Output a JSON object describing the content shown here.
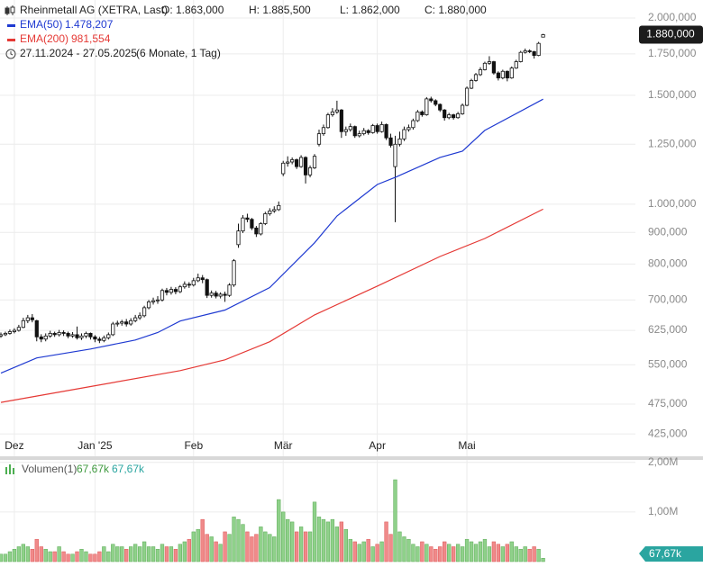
{
  "header": {
    "title": "Rheinmetall AG (XETRA, Last)",
    "ohlc": [
      "O: 1.863,000",
      "H: 1.885,500",
      "L: 1.862,000",
      "C: 1.880,000"
    ],
    "indicators": [
      {
        "name": "EMA(50)",
        "value": "1.478,207"
      },
      {
        "name": "EMA(200)",
        "value": "981,554"
      }
    ],
    "range": "27.11.2024 - 27.05.2025",
    "period": "(6 Monate, 1 Tag)"
  },
  "chart_data": {
    "type": "candlestick",
    "log": true,
    "grid": true,
    "xlim": [
      -0.2,
      141.6
    ],
    "ylim": [
      391,
      2139
    ],
    "xticks": [
      {
        "value": 3,
        "label": "Dez"
      },
      {
        "value": 21,
        "label": "Jan '25"
      },
      {
        "value": 43,
        "label": "Feb"
      },
      {
        "value": 63,
        "label": "Mär"
      },
      {
        "value": 84,
        "label": "Apr"
      },
      {
        "value": 104,
        "label": "Mai"
      }
    ],
    "yticks": [
      {
        "value": 2000,
        "label": "2.000,000"
      },
      {
        "value": 1750,
        "label": "1.750,000"
      },
      {
        "value": 1500,
        "label": "1.500,000"
      },
      {
        "value": 1250,
        "label": "1.250,000"
      },
      {
        "value": 1000,
        "label": "1.000,000"
      },
      {
        "value": 900,
        "label": "900,000"
      },
      {
        "value": 800,
        "label": "800,000"
      },
      {
        "value": 700,
        "label": "700,000"
      },
      {
        "value": 625,
        "label": "625,000"
      },
      {
        "value": 550,
        "label": "550,000"
      },
      {
        "value": 475,
        "label": "475,000"
      },
      {
        "value": 425,
        "label": "425,000"
      }
    ],
    "open": [
      612,
      615,
      618,
      622,
      625,
      632,
      648,
      655,
      648,
      610,
      605,
      612,
      618,
      615,
      620,
      618,
      612,
      615,
      608,
      612,
      618,
      610,
      605,
      602,
      608,
      615,
      640,
      642,
      645,
      640,
      648,
      655,
      660,
      680,
      695,
      698,
      700,
      725,
      720,
      728,
      722,
      735,
      742,
      740,
      752,
      760,
      755,
      712,
      718,
      710,
      715,
      712,
      740,
      860,
      905,
      950,
      945,
      915,
      895,
      930,
      965,
      975,
      980,
      1120,
      1165,
      1170,
      1180,
      1150,
      1190,
      1115,
      1145,
      1250,
      1300,
      1330,
      1395,
      1410,
      1420,
      1310,
      1320,
      1335,
      1290,
      1300,
      1315,
      1305,
      1340,
      1310,
      1345,
      1280,
      1150,
      1250,
      1275,
      1320,
      1330,
      1365,
      1410,
      1395,
      1480,
      1470,
      1450,
      1420,
      1380,
      1395,
      1380,
      1400,
      1445,
      1540,
      1585,
      1620,
      1650,
      1690,
      1700,
      1630,
      1600,
      1640,
      1600,
      1660,
      1700,
      1760,
      1770,
      1765,
      1740,
      1863
    ],
    "high": [
      620,
      622,
      627,
      630,
      638,
      655,
      662,
      664,
      650,
      616,
      618,
      624,
      622,
      626,
      625,
      622,
      621,
      634,
      618,
      622,
      620,
      614,
      610,
      613,
      620,
      645,
      648,
      650,
      652,
      654,
      662,
      668,
      685,
      700,
      706,
      710,
      730,
      732,
      735,
      734,
      740,
      750,
      748,
      760,
      772,
      768,
      758,
      725,
      724,
      720,
      722,
      745,
      815,
      930,
      960,
      965,
      950,
      922,
      935,
      972,
      985,
      992,
      1010,
      1175,
      1195,
      1190,
      1185,
      1200,
      1195,
      1155,
      1205,
      1320,
      1345,
      1405,
      1430,
      1470,
      1425,
      1335,
      1350,
      1340,
      1315,
      1328,
      1322,
      1348,
      1350,
      1360,
      1350,
      1300,
      1290,
      1310,
      1335,
      1345,
      1375,
      1420,
      1418,
      1490,
      1492,
      1478,
      1455,
      1425,
      1405,
      1400,
      1410,
      1455,
      1550,
      1595,
      1630,
      1665,
      1700,
      1735,
      1705,
      1640,
      1650,
      1645,
      1670,
      1712,
      1770,
      1785,
      1780,
      1770,
      1830,
      1885.5
    ],
    "low": [
      608,
      612,
      615,
      618,
      622,
      630,
      642,
      644,
      600,
      598,
      600,
      608,
      610,
      611,
      612,
      607,
      608,
      604,
      603,
      607,
      604,
      598,
      596,
      598,
      604,
      612,
      634,
      636,
      634,
      636,
      644,
      650,
      656,
      676,
      688,
      690,
      696,
      712,
      714,
      715,
      718,
      730,
      732,
      736,
      748,
      745,
      705,
      706,
      704,
      704,
      695,
      708,
      735,
      850,
      898,
      935,
      908,
      885,
      890,
      925,
      958,
      968,
      975,
      1110,
      1150,
      1160,
      1140,
      1145,
      1080,
      1105,
      1140,
      1240,
      1290,
      1325,
      1385,
      1400,
      1280,
      1290,
      1310,
      1280,
      1282,
      1292,
      1295,
      1300,
      1300,
      1305,
      1270,
      1235,
      935,
      1240,
      1265,
      1310,
      1320,
      1358,
      1385,
      1390,
      1460,
      1440,
      1410,
      1365,
      1372,
      1370,
      1375,
      1395,
      1440,
      1535,
      1578,
      1612,
      1645,
      1680,
      1620,
      1585,
      1592,
      1580,
      1595,
      1655,
      1695,
      1752,
      1755,
      1720,
      1735,
      1862
    ],
    "close": [
      615,
      618,
      622,
      625,
      632,
      648,
      655,
      650,
      610,
      605,
      612,
      618,
      615,
      620,
      618,
      612,
      615,
      608,
      612,
      618,
      610,
      605,
      602,
      608,
      615,
      640,
      642,
      645,
      640,
      648,
      655,
      660,
      680,
      695,
      698,
      700,
      725,
      720,
      728,
      722,
      735,
      742,
      740,
      752,
      760,
      755,
      712,
      718,
      710,
      715,
      712,
      740,
      810,
      905,
      950,
      945,
      915,
      895,
      930,
      965,
      975,
      980,
      995,
      1165,
      1170,
      1180,
      1150,
      1190,
      1115,
      1145,
      1195,
      1300,
      1330,
      1395,
      1410,
      1420,
      1310,
      1320,
      1335,
      1290,
      1300,
      1315,
      1305,
      1340,
      1310,
      1345,
      1280,
      1245,
      1250,
      1275,
      1320,
      1330,
      1365,
      1410,
      1395,
      1480,
      1470,
      1450,
      1420,
      1380,
      1395,
      1380,
      1400,
      1445,
      1540,
      1585,
      1620,
      1650,
      1690,
      1700,
      1630,
      1600,
      1640,
      1600,
      1660,
      1700,
      1760,
      1770,
      1765,
      1740,
      1820,
      1880
    ],
    "last_label": "1.880,000",
    "series": [
      {
        "name": "EMA(50)",
        "color": "#1f3ad1",
        "x": [
          0,
          8,
          20,
          30,
          35,
          40,
          50,
          60,
          70,
          75,
          84,
          88,
          98,
          103,
          108,
          121
        ],
        "values": [
          533,
          564,
          583,
          603,
          620,
          647,
          674,
          733,
          866,
          957,
          1076,
          1105,
          1190,
          1218,
          1316,
          1478.207
        ]
      },
      {
        "name": "EMA(200)",
        "color": "#e53935",
        "x": [
          0,
          20,
          40,
          50,
          60,
          70,
          84,
          98,
          108,
          121
        ],
        "values": [
          478,
          507,
          538,
          560,
          599,
          662,
          737,
          823,
          880,
          981.554
        ]
      }
    ],
    "volume": {
      "name": "Volumen(1)",
      "ylim": [
        0,
        2.05
      ],
      "yticks": [
        {
          "value": 2,
          "label": "2,00M"
        },
        {
          "value": 1,
          "label": "1,00M"
        }
      ],
      "up_color": "#8fd18a",
      "down_color": "#f08a8a",
      "last_label": "67,67k",
      "values": [
        0.15,
        0.15,
        0.2,
        0.25,
        0.3,
        0.35,
        0.3,
        0.25,
        0.45,
        0.3,
        0.25,
        0.2,
        0.2,
        0.3,
        0.2,
        0.15,
        0.15,
        0.2,
        0.25,
        0.2,
        0.15,
        0.15,
        0.2,
        0.3,
        0.2,
        0.35,
        0.3,
        0.3,
        0.25,
        0.3,
        0.35,
        0.3,
        0.4,
        0.3,
        0.3,
        0.25,
        0.35,
        0.3,
        0.3,
        0.25,
        0.35,
        0.4,
        0.45,
        0.6,
        0.65,
        0.85,
        0.55,
        0.5,
        0.4,
        0.35,
        0.6,
        0.55,
        0.9,
        0.85,
        0.75,
        0.6,
        0.5,
        0.55,
        0.7,
        0.6,
        0.55,
        0.5,
        1.25,
        1.0,
        0.85,
        0.8,
        0.6,
        0.7,
        0.6,
        0.6,
        1.2,
        0.9,
        0.85,
        0.8,
        0.85,
        0.7,
        0.8,
        0.65,
        0.45,
        0.4,
        0.35,
        0.4,
        0.45,
        0.3,
        0.35,
        0.4,
        0.8,
        0.55,
        1.65,
        0.6,
        0.5,
        0.45,
        0.35,
        0.3,
        0.4,
        0.35,
        0.3,
        0.25,
        0.3,
        0.4,
        0.35,
        0.3,
        0.35,
        0.3,
        0.45,
        0.4,
        0.35,
        0.4,
        0.45,
        0.3,
        0.4,
        0.35,
        0.3,
        0.35,
        0.4,
        0.3,
        0.25,
        0.3,
        0.25,
        0.3,
        0.25,
        0.06767
      ]
    }
  }
}
